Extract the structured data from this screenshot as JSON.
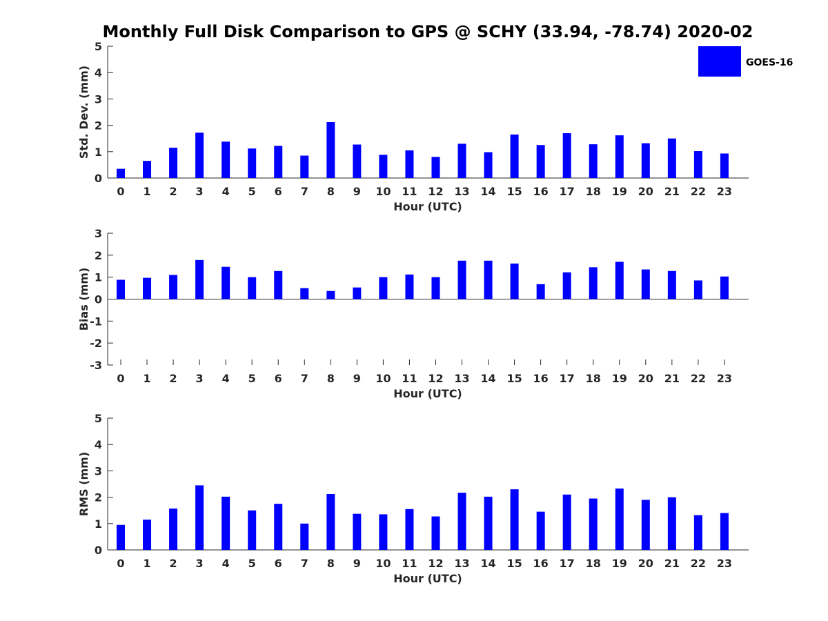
{
  "figure": {
    "title": "Monthly Full Disk Comparison to GPS @ SCHY (33.94, -78.74) 2020-02",
    "legend": {
      "label": "GOES-16",
      "color": "#0000ff",
      "placement": "top-right"
    }
  },
  "chart_data": [
    {
      "type": "bar",
      "ylabel": "Std. Dev. (mm)",
      "xlabel": "Hour (UTC)",
      "ylim": [
        0,
        5
      ],
      "yticks": [
        0,
        1,
        2,
        3,
        4,
        5
      ],
      "categories": [
        "0",
        "1",
        "2",
        "3",
        "4",
        "5",
        "6",
        "7",
        "8",
        "9",
        "10",
        "11",
        "12",
        "13",
        "14",
        "15",
        "16",
        "17",
        "18",
        "19",
        "20",
        "21",
        "22",
        "23"
      ],
      "series": [
        {
          "name": "GOES-16",
          "color": "#0000ff",
          "values": [
            0.35,
            0.65,
            1.15,
            1.72,
            1.38,
            1.12,
            1.22,
            0.85,
            2.12,
            1.27,
            0.88,
            1.05,
            0.8,
            1.3,
            0.98,
            1.65,
            1.25,
            1.7,
            1.28,
            1.62,
            1.32,
            1.5,
            1.02,
            0.93
          ]
        }
      ]
    },
    {
      "type": "bar",
      "ylabel": "Bias (mm)",
      "xlabel": "Hour (UTC)",
      "ylim": [
        -3,
        3
      ],
      "yticks": [
        -3,
        -2,
        -1,
        0,
        1,
        2,
        3
      ],
      "categories": [
        "0",
        "1",
        "2",
        "3",
        "4",
        "5",
        "6",
        "7",
        "8",
        "9",
        "10",
        "11",
        "12",
        "13",
        "14",
        "15",
        "16",
        "17",
        "18",
        "19",
        "20",
        "21",
        "22",
        "23"
      ],
      "series": [
        {
          "name": "GOES-16",
          "color": "#0000ff",
          "values": [
            0.88,
            0.97,
            1.1,
            1.78,
            1.47,
            1.0,
            1.28,
            0.5,
            0.37,
            0.53,
            1.0,
            1.12,
            1.0,
            1.75,
            1.75,
            1.62,
            0.68,
            1.22,
            1.45,
            1.7,
            1.35,
            1.28,
            0.85,
            1.03
          ]
        }
      ]
    },
    {
      "type": "bar",
      "ylabel": "RMS (mm)",
      "xlabel": "Hour (UTC)",
      "ylim": [
        0,
        5
      ],
      "yticks": [
        0,
        1,
        2,
        3,
        4,
        5
      ],
      "categories": [
        "0",
        "1",
        "2",
        "3",
        "4",
        "5",
        "6",
        "7",
        "8",
        "9",
        "10",
        "11",
        "12",
        "13",
        "14",
        "15",
        "16",
        "17",
        "18",
        "19",
        "20",
        "21",
        "22",
        "23"
      ],
      "series": [
        {
          "name": "GOES-16",
          "color": "#0000ff",
          "values": [
            0.95,
            1.15,
            1.57,
            2.45,
            2.02,
            1.5,
            1.75,
            1.0,
            2.12,
            1.37,
            1.35,
            1.55,
            1.27,
            2.17,
            2.02,
            2.3,
            1.45,
            2.1,
            1.95,
            2.33,
            1.9,
            2.0,
            1.32,
            1.4
          ]
        }
      ]
    }
  ]
}
